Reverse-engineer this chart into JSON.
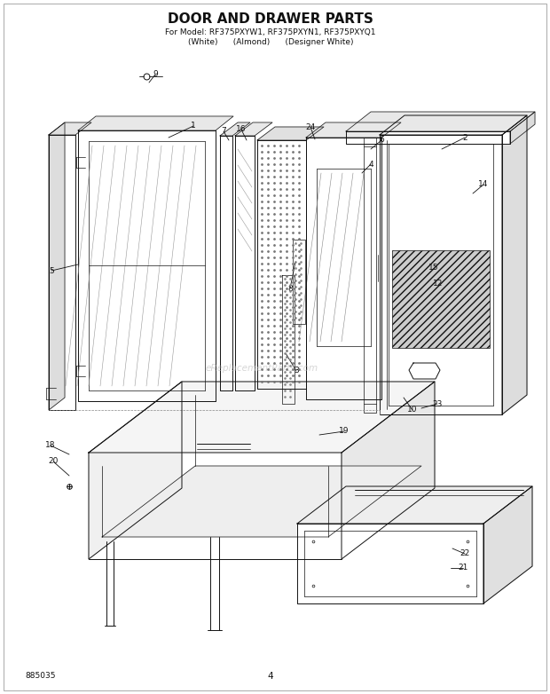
{
  "title": "DOOR AND DRAWER PARTS",
  "subtitle": "For Model: RF375PXYW1, RF375PXYN1, RF375PXYQ1",
  "subtitle2": "(White)      (Almond)      (Designer White)",
  "part_number": "885035",
  "page_number": "4",
  "watermark": "eReplacementParts.com",
  "bg": "#ffffff",
  "lc": "#111111",
  "gray": "#aaaaaa"
}
